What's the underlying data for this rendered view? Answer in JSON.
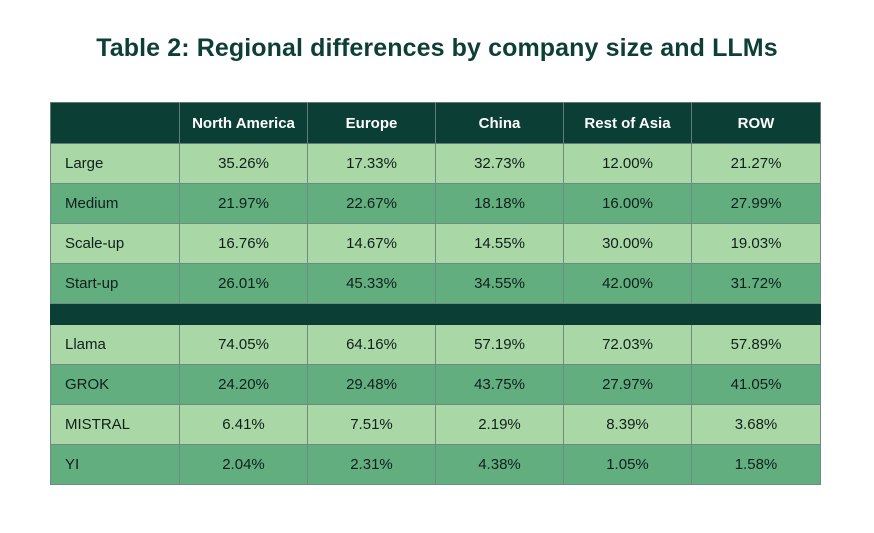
{
  "title": "Table 2: Regional differences by company size and LLMs",
  "colors": {
    "header_bg": "#0b3e35",
    "row_light": "#a9d7a6",
    "row_dark": "#63ae7f",
    "title_color": "#0e3f36"
  },
  "chart_data": {
    "type": "table",
    "title": "Table 2: Regional differences by company size and LLMs",
    "columns": [
      "",
      "North America",
      "Europe",
      "China",
      "Rest of Asia",
      "ROW"
    ],
    "groups": [
      {
        "rows": [
          {
            "label": "Large",
            "values": [
              "35.26%",
              "17.33%",
              "32.73%",
              "12.00%",
              "21.27%"
            ]
          },
          {
            "label": "Medium",
            "values": [
              "21.97%",
              "22.67%",
              "18.18%",
              "16.00%",
              "27.99%"
            ]
          },
          {
            "label": "Scale-up",
            "values": [
              "16.76%",
              "14.67%",
              "14.55%",
              "30.00%",
              "19.03%"
            ]
          },
          {
            "label": "Start-up",
            "values": [
              "26.01%",
              "45.33%",
              "34.55%",
              "42.00%",
              "31.72%"
            ]
          }
        ]
      },
      {
        "rows": [
          {
            "label": "Llama",
            "values": [
              "74.05%",
              "64.16%",
              "57.19%",
              "72.03%",
              "57.89%"
            ]
          },
          {
            "label": "GROK",
            "values": [
              "24.20%",
              "29.48%",
              "43.75%",
              "27.97%",
              "41.05%"
            ]
          },
          {
            "label": "MISTRAL",
            "values": [
              "6.41%",
              "7.51%",
              "2.19%",
              "8.39%",
              "3.68%"
            ]
          },
          {
            "label": "YI",
            "values": [
              "2.04%",
              "2.31%",
              "4.38%",
              "1.05%",
              "1.58%"
            ]
          }
        ]
      }
    ]
  }
}
